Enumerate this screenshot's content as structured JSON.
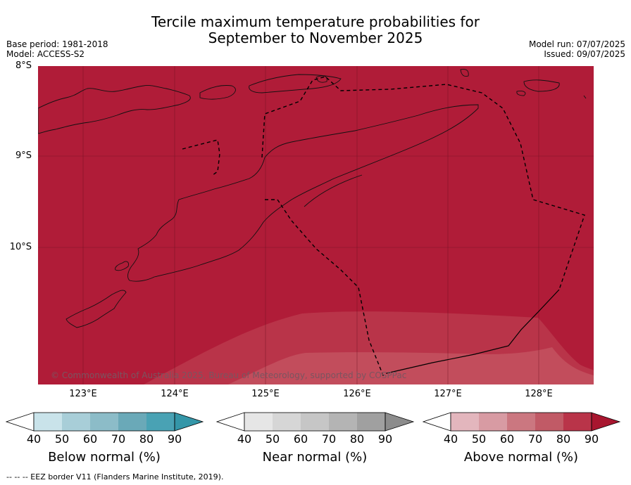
{
  "title_line1": "Tercile maximum temperature probabilities for",
  "title_line2": "September to November 2025",
  "base_period": "Base period: 1981-2018",
  "model": "Model: ACCESS-S2",
  "model_run": "Model run: 07/07/2025",
  "issued": "Issued: 09/07/2025",
  "map": {
    "lat_labels": [
      "8°S",
      "9°S",
      "10°S"
    ],
    "lon_labels": [
      "123°E",
      "124°E",
      "125°E",
      "126°E",
      "127°E",
      "128°E"
    ],
    "copyright": "© Commonwealth of Australia 2025, Bureau of Meteorology, supported by COSPPac",
    "colors": {
      "above_90": "#b01c38",
      "above_80": "#b93449",
      "above_70": "#c24d5c"
    }
  },
  "colorbars": [
    {
      "title": "Below normal (%)",
      "ticks": [
        "40",
        "50",
        "60",
        "70",
        "80",
        "90"
      ],
      "colors": [
        "#ffffff",
        "#c9e3ea",
        "#a8ced8",
        "#8cbcc8",
        "#6aa9b8",
        "#49a2b4",
        "#3496a8"
      ]
    },
    {
      "title": "Near normal (%)",
      "ticks": [
        "40",
        "50",
        "60",
        "70",
        "80",
        "90"
      ],
      "colors": [
        "#ffffff",
        "#e6e6e6",
        "#d6d6d6",
        "#c6c6c6",
        "#b4b4b4",
        "#a0a0a0",
        "#8c8c8c"
      ]
    },
    {
      "title": "Above normal (%)",
      "ticks": [
        "40",
        "50",
        "60",
        "70",
        "80",
        "90"
      ],
      "colors": [
        "#ffffff",
        "#e3b6bd",
        "#d89ba3",
        "#cb7780",
        "#c15a66",
        "#b93449",
        "#a8162f"
      ]
    }
  ],
  "footer": "--  --  -- EEZ border V11 (Flanders Marine Institute, 2019)."
}
